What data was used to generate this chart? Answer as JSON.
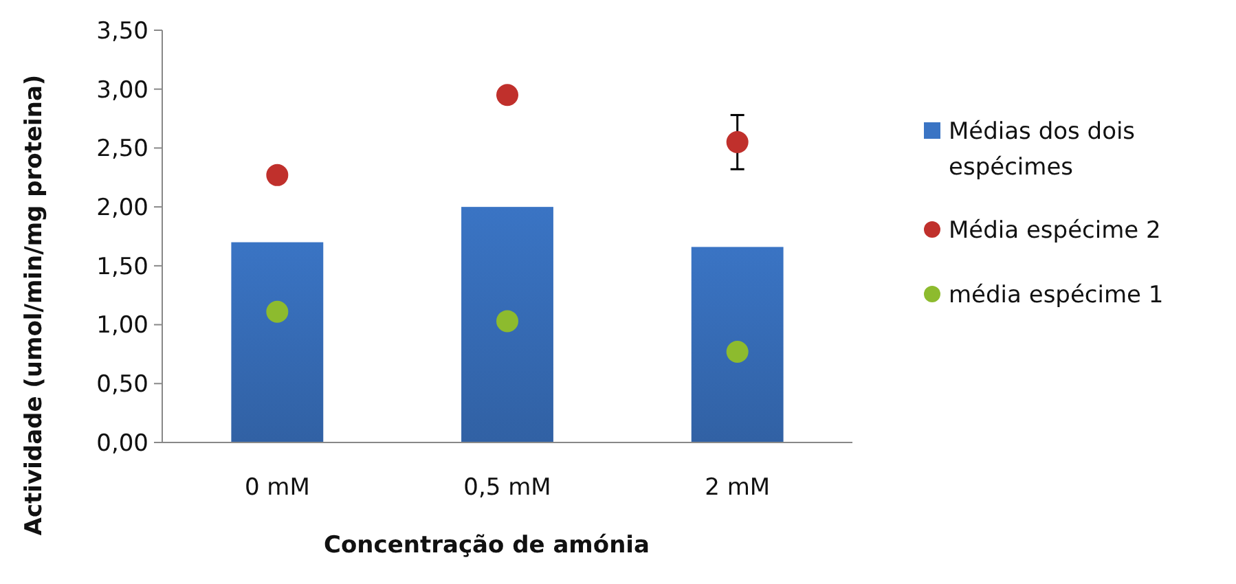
{
  "chart_data": {
    "type": "bar",
    "xlabel": "Concentração de amónia",
    "ylabel": "Actividade (umol/min/mg proteina)",
    "categories": [
      "0 mM",
      "0,5 mM",
      "2 mM"
    ],
    "ylim": [
      0,
      3.5
    ],
    "yticks": [
      {
        "value": 0,
        "label": "0,00"
      },
      {
        "value": 0.5,
        "label": "0,50"
      },
      {
        "value": 1,
        "label": "1,00"
      },
      {
        "value": 1.5,
        "label": "1,50"
      },
      {
        "value": 2,
        "label": "2,00"
      },
      {
        "value": 2.5,
        "label": "2,50"
      },
      {
        "value": 3,
        "label": "3,00"
      },
      {
        "value": 3.5,
        "label": "3,50"
      }
    ],
    "grid": false,
    "legend": "right",
    "marker": "circle",
    "series": [
      {
        "name": "Médias dos dois espécimes",
        "color": "#3a74c4",
        "values": [
          1.7,
          2.0,
          1.66
        ]
      },
      {
        "name": "Média espécime 2",
        "type": "scatter",
        "x": [
          "0 mM",
          "0,5 mM",
          "2 mM"
        ],
        "color": "#c0302c",
        "values": [
          2.27,
          2.95,
          2.55
        ],
        "errors": [
          null,
          null,
          0.23
        ]
      },
      {
        "name": "média espécime 1",
        "type": "scatter",
        "x": [
          "0 mM",
          "0,5 mM",
          "2 mM"
        ],
        "color": "#8dbb2e",
        "values": [
          1.11,
          1.03,
          0.77
        ]
      }
    ]
  }
}
